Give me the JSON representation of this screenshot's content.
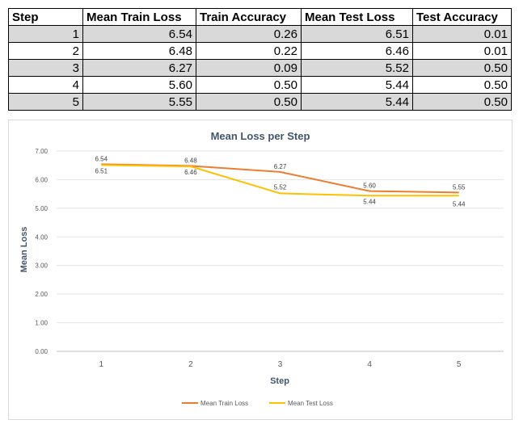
{
  "table": {
    "headers": [
      "Step",
      "Mean Train Loss",
      "Train Accuracy",
      "Mean Test Loss",
      "Test Accuracy"
    ],
    "rows": [
      [
        "1",
        "6.54",
        "0.26",
        "6.51",
        "0.01"
      ],
      [
        "2",
        "6.48",
        "0.22",
        "6.46",
        "0.01"
      ],
      [
        "3",
        "6.27",
        "0.09",
        "5.52",
        "0.50"
      ],
      [
        "4",
        "5.60",
        "0.50",
        "5.44",
        "0.50"
      ],
      [
        "5",
        "5.55",
        "0.50",
        "5.44",
        "0.50"
      ]
    ]
  },
  "chart_data": {
    "type": "line",
    "title": "Mean Loss per Step",
    "xlabel": "Step",
    "ylabel": "Mean Loss",
    "categories": [
      "1",
      "2",
      "3",
      "4",
      "5"
    ],
    "ylim": [
      0,
      7
    ],
    "yticks": [
      "0.00",
      "1.00",
      "2.00",
      "3.00",
      "4.00",
      "5.00",
      "6.00",
      "7.00"
    ],
    "grid": true,
    "legend": "bottom",
    "series": [
      {
        "name": "Mean Train Loss",
        "color": "#ed7d31",
        "values": [
          6.54,
          6.48,
          6.27,
          5.6,
          5.55
        ],
        "labels": [
          "6.54",
          "6.48",
          "6.27",
          "5.60",
          "5.55"
        ]
      },
      {
        "name": "Mean Test Loss",
        "color": "#ffc000",
        "values": [
          6.51,
          6.46,
          5.52,
          5.44,
          5.44
        ],
        "labels": [
          "6.51",
          "6.46",
          "5.52",
          "5.44",
          "5.44"
        ]
      }
    ]
  }
}
